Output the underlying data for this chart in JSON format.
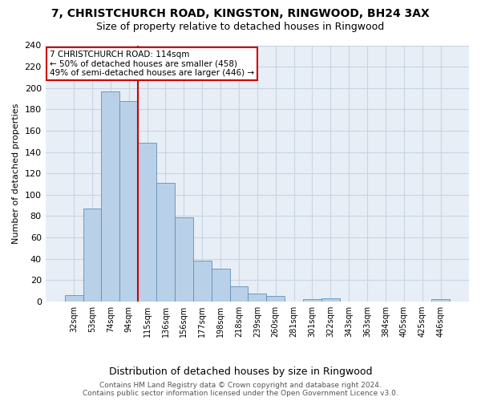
{
  "title": "7, CHRISTCHURCH ROAD, KINGSTON, RINGWOOD, BH24 3AX",
  "subtitle": "Size of property relative to detached houses in Ringwood",
  "xlabel": "Distribution of detached houses by size in Ringwood",
  "ylabel": "Number of detached properties",
  "categories": [
    "32sqm",
    "53sqm",
    "74sqm",
    "94sqm",
    "115sqm",
    "136sqm",
    "156sqm",
    "177sqm",
    "198sqm",
    "218sqm",
    "239sqm",
    "260sqm",
    "281sqm",
    "301sqm",
    "322sqm",
    "343sqm",
    "363sqm",
    "384sqm",
    "405sqm",
    "425sqm",
    "446sqm"
  ],
  "values": [
    6,
    87,
    197,
    188,
    149,
    111,
    79,
    38,
    31,
    14,
    7,
    5,
    0,
    2,
    3,
    0,
    0,
    0,
    0,
    0,
    2
  ],
  "bar_color": "#b8d0e8",
  "bar_edge_color": "#6090b8",
  "vline_color": "#cc0000",
  "vline_pos": 3.5,
  "annotation_text": "7 CHRISTCHURCH ROAD: 114sqm\n← 50% of detached houses are smaller (458)\n49% of semi-detached houses are larger (446) →",
  "annotation_box_color": "#ffffff",
  "annotation_box_edge": "#cc0000",
  "ylim": [
    0,
    240
  ],
  "yticks": [
    0,
    20,
    40,
    60,
    80,
    100,
    120,
    140,
    160,
    180,
    200,
    220,
    240
  ],
  "footer_line1": "Contains HM Land Registry data © Crown copyright and database right 2024.",
  "footer_line2": "Contains public sector information licensed under the Open Government Licence v3.0.",
  "grid_color": "#c8d4e4",
  "background_color": "#e8eef6",
  "title_fontsize": 10,
  "subtitle_fontsize": 9,
  "ylabel_fontsize": 8,
  "xlabel_fontsize": 9,
  "tick_fontsize": 8,
  "xtick_fontsize": 7,
  "footer_fontsize": 6.5
}
